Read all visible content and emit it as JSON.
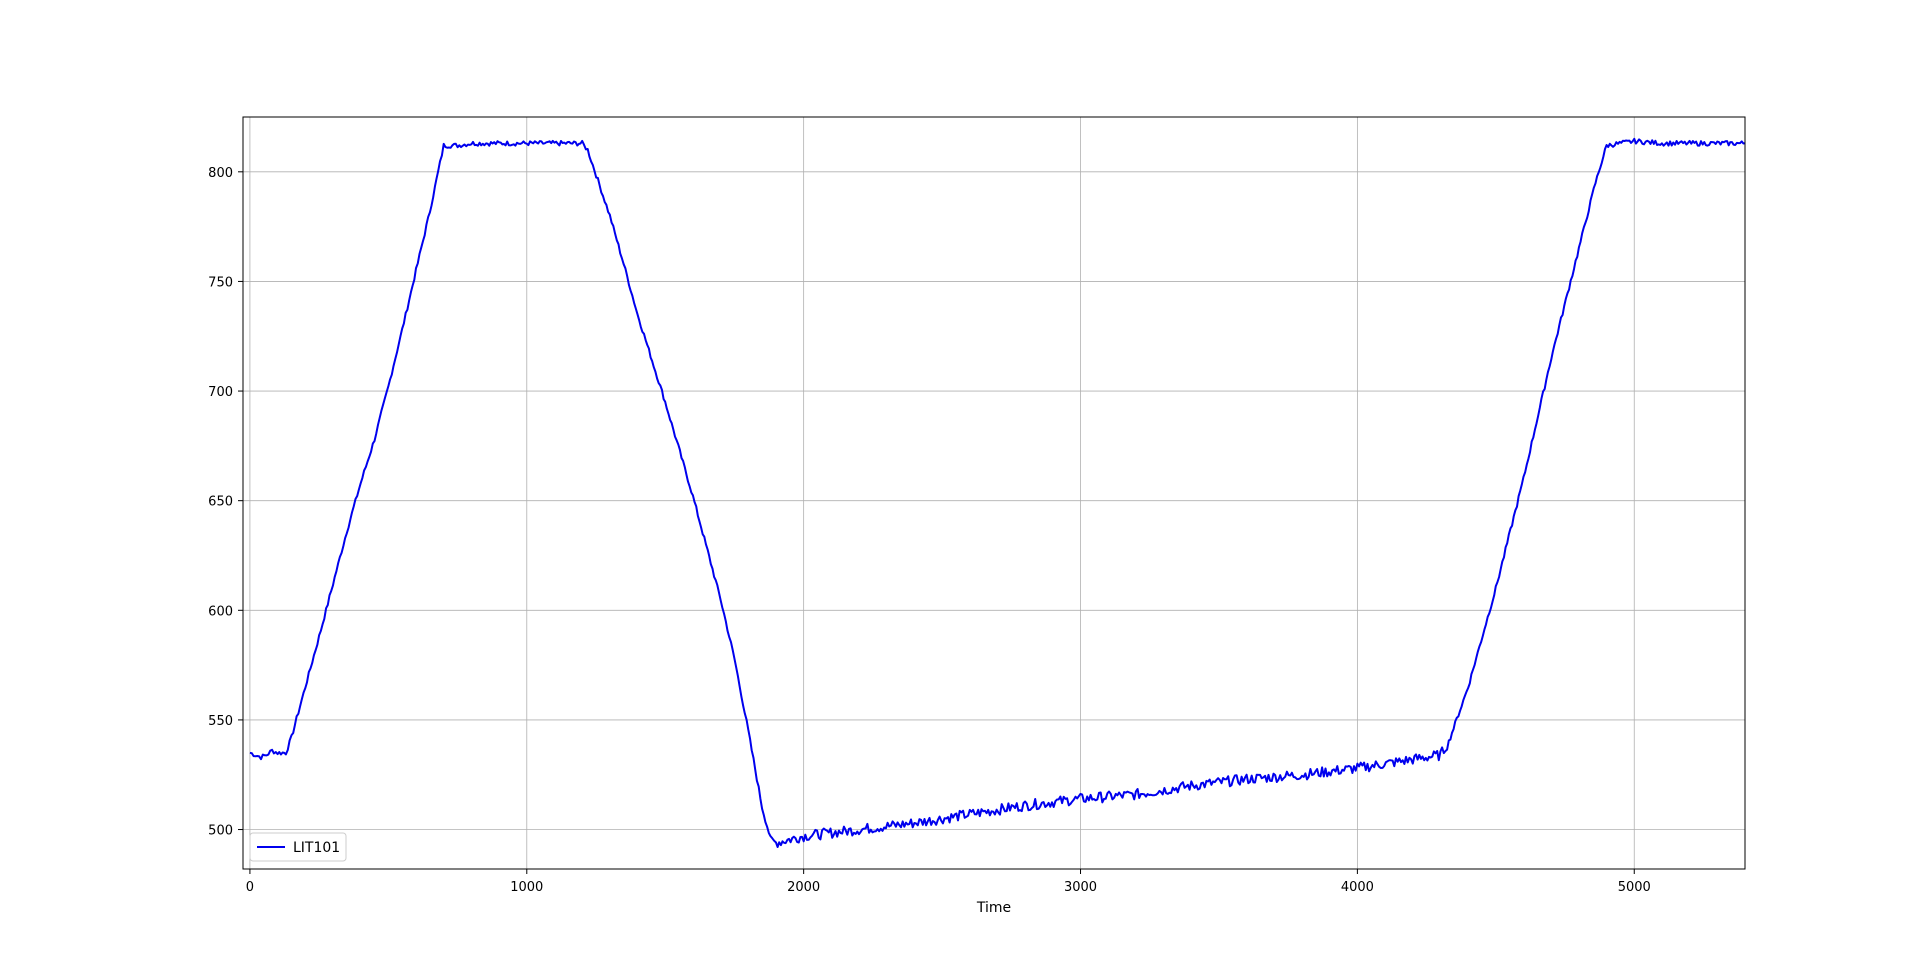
{
  "chart_data": {
    "type": "line",
    "title": "",
    "xlabel": "Time",
    "ylabel": "",
    "xlim": [
      -25,
      5400
    ],
    "ylim": [
      482,
      825
    ],
    "x_ticks": [
      0,
      1000,
      2000,
      3000,
      4000,
      5000
    ],
    "y_ticks": [
      500,
      550,
      600,
      650,
      700,
      750,
      800
    ],
    "grid": true,
    "legend_position": "lower-left",
    "series": [
      {
        "name": "LIT101",
        "color": "#0000ee",
        "keypoints": [
          [
            0,
            535
          ],
          [
            20,
            534
          ],
          [
            40,
            533
          ],
          [
            60,
            534
          ],
          [
            80,
            536
          ],
          [
            100,
            535
          ],
          [
            130,
            535
          ],
          [
            150,
            542
          ],
          [
            200,
            565
          ],
          [
            250,
            588
          ],
          [
            300,
            612
          ],
          [
            350,
            636
          ],
          [
            400,
            658
          ],
          [
            450,
            678
          ],
          [
            500,
            702
          ],
          [
            550,
            728
          ],
          [
            600,
            755
          ],
          [
            650,
            782
          ],
          [
            680,
            800
          ],
          [
            700,
            812
          ],
          [
            750,
            812
          ],
          [
            800,
            813
          ],
          [
            900,
            813
          ],
          [
            1000,
            813
          ],
          [
            1100,
            813
          ],
          [
            1200,
            813
          ],
          [
            1220,
            810
          ],
          [
            1300,
            780
          ],
          [
            1350,
            758
          ],
          [
            1400,
            735
          ],
          [
            1500,
            695
          ],
          [
            1600,
            652
          ],
          [
            1700,
            605
          ],
          [
            1750,
            578
          ],
          [
            1800,
            545
          ],
          [
            1850,
            510
          ],
          [
            1880,
            496
          ],
          [
            1900,
            494
          ],
          [
            2000,
            497
          ],
          [
            2200,
            500
          ],
          [
            2400,
            503
          ],
          [
            2600,
            507
          ],
          [
            2800,
            511
          ],
          [
            3000,
            514
          ],
          [
            3200,
            516
          ],
          [
            3400,
            520
          ],
          [
            3600,
            523
          ],
          [
            3800,
            525
          ],
          [
            4000,
            528
          ],
          [
            4200,
            532
          ],
          [
            4300,
            534
          ],
          [
            4330,
            540
          ],
          [
            4400,
            565
          ],
          [
            4500,
            610
          ],
          [
            4600,
            660
          ],
          [
            4700,
            715
          ],
          [
            4800,
            765
          ],
          [
            4860,
            795
          ],
          [
            4900,
            812
          ],
          [
            5000,
            814
          ],
          [
            5100,
            813
          ],
          [
            5200,
            813
          ],
          [
            5300,
            813
          ],
          [
            5400,
            813
          ]
        ]
      }
    ]
  }
}
